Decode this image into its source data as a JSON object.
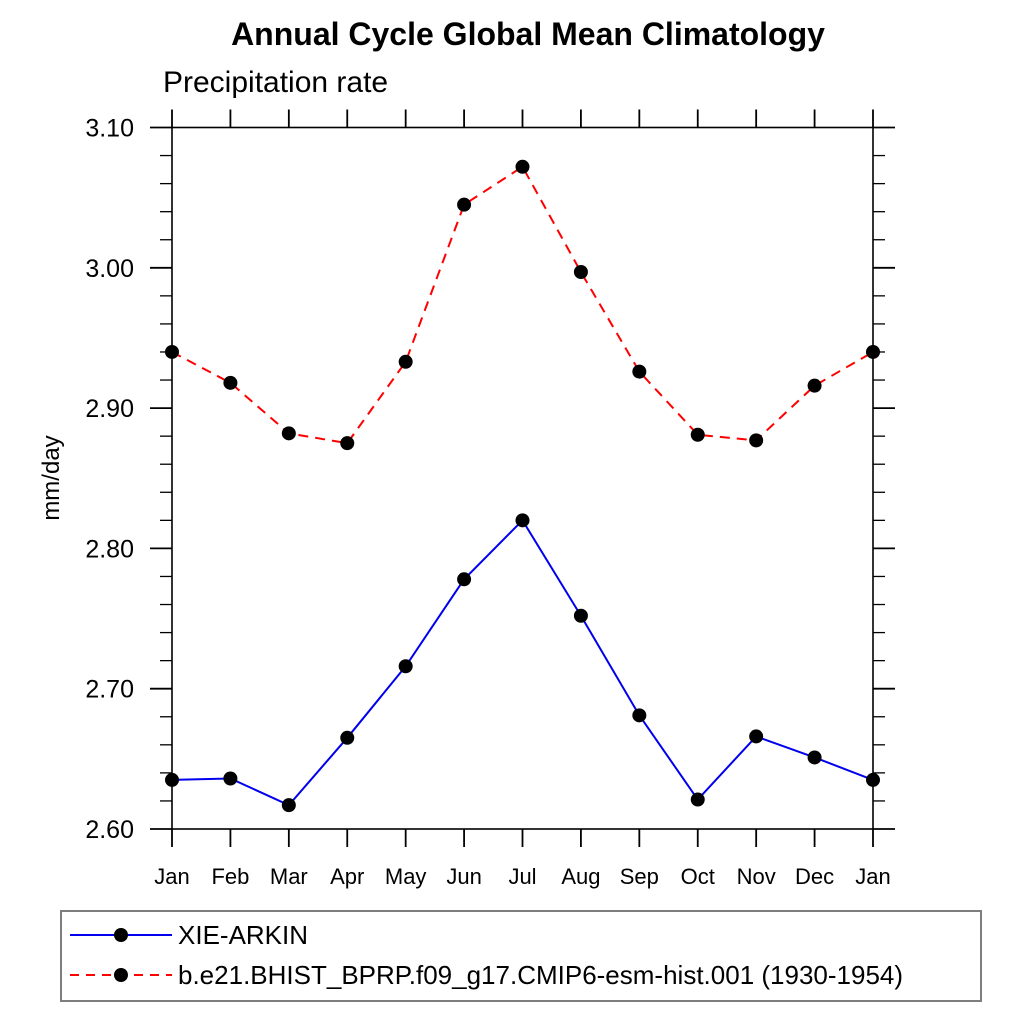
{
  "chart_data": {
    "type": "line",
    "title": "Annual Cycle Global Mean Climatology",
    "subtitle": "Precipitation rate",
    "ylabel": "mm/day",
    "categories": [
      "Jan",
      "Feb",
      "Mar",
      "Apr",
      "May",
      "Jun",
      "Jul",
      "Aug",
      "Sep",
      "Oct",
      "Nov",
      "Dec",
      "Jan"
    ],
    "ylim": [
      2.6,
      3.1
    ],
    "ytick_major": 0.1,
    "ytick_minor": 0.02,
    "yticklabels": [
      "2.60",
      "2.70",
      "2.80",
      "2.90",
      "3.00",
      "3.10"
    ],
    "grid": false,
    "legend_position": "bottom-left-box",
    "axis_color": "#000000",
    "series": [
      {
        "name": "XIE-ARKIN",
        "color": "#0000ee",
        "style": "solid",
        "marker": "circle",
        "marker_color": "#000000",
        "values": [
          2.635,
          2.636,
          2.617,
          2.665,
          2.716,
          2.778,
          2.82,
          2.752,
          2.681,
          2.621,
          2.666,
          2.651,
          2.635
        ]
      },
      {
        "name": "b.e21.BHIST_BPRP.f09_g17.CMIP6-esm-hist.001 (1930-1954)",
        "color": "#ff0000",
        "style": "dashed",
        "marker": "circle",
        "marker_color": "#000000",
        "values": [
          2.94,
          2.918,
          2.882,
          2.875,
          2.933,
          3.045,
          3.072,
          2.997,
          2.926,
          2.881,
          2.877,
          2.916,
          2.94
        ]
      }
    ]
  }
}
